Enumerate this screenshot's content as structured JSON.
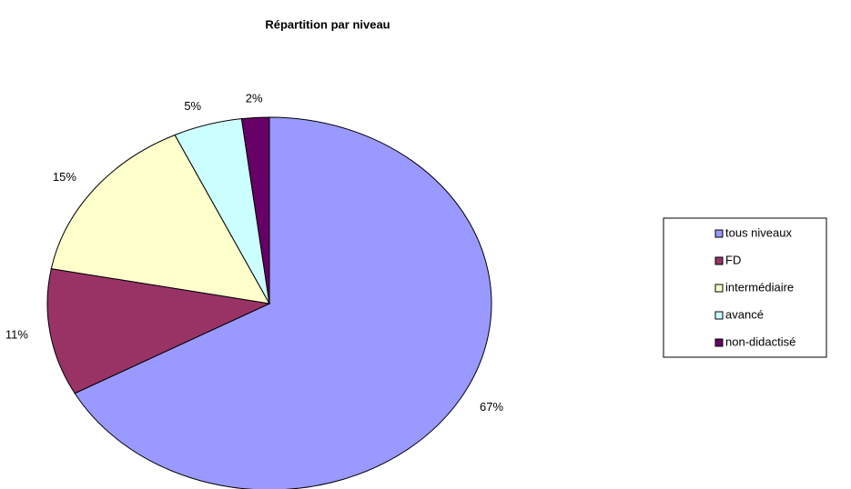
{
  "chart_data": {
    "type": "pie",
    "title": "Répartition par niveau",
    "categories": [
      "tous niveaux",
      "FD",
      "intermédiaire",
      "avancé",
      "non-didactisé"
    ],
    "values": [
      67,
      11,
      15,
      5,
      2
    ],
    "value_labels": [
      "67%",
      "11%",
      "15%",
      "5%",
      "2%"
    ],
    "colors": [
      "#9999ff",
      "#993366",
      "#ffffcc",
      "#ccffff",
      "#660066"
    ],
    "legend": "right"
  }
}
